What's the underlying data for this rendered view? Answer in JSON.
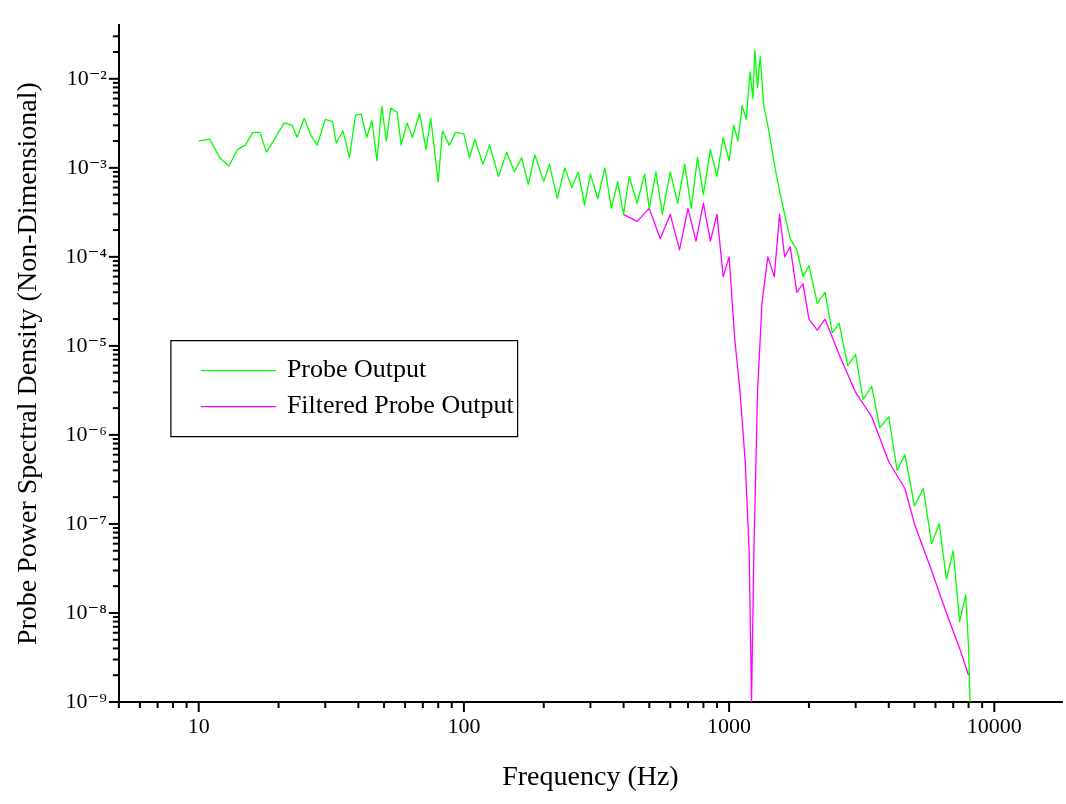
{
  "chart_data": {
    "type": "line",
    "xlabel": "Frequency (Hz)",
    "ylabel": "Probe Power Spectral Density (Non-Dimensional)",
    "log": "xy",
    "marker": "none",
    "line_style": "solid",
    "legend": "left",
    "xlim": [
      5,
      18000
    ],
    "ylim": [
      1e-09,
      0.04
    ],
    "xticks": [
      {
        "value": 5,
        "label": null
      },
      {
        "value": 6,
        "label": null
      },
      {
        "value": 7,
        "label": null
      },
      {
        "value": 8,
        "label": null
      },
      {
        "value": 9,
        "label": null
      },
      10,
      {
        "value": 20,
        "label": null
      },
      {
        "value": 30,
        "label": null
      },
      {
        "value": 40,
        "label": null
      },
      {
        "value": 50,
        "label": null
      },
      {
        "value": 60,
        "label": null
      },
      {
        "value": 70,
        "label": null
      },
      {
        "value": 80,
        "label": null
      },
      {
        "value": 90,
        "label": null
      },
      100,
      {
        "value": 200,
        "label": null
      },
      {
        "value": 300,
        "label": null
      },
      {
        "value": 400,
        "label": null
      },
      {
        "value": 500,
        "label": null
      },
      {
        "value": 600,
        "label": null
      },
      {
        "value": 700,
        "label": null
      },
      {
        "value": 800,
        "label": null
      },
      {
        "value": 900,
        "label": null
      },
      1000,
      {
        "value": 2000,
        "label": null
      },
      {
        "value": 3000,
        "label": null
      },
      {
        "value": 4000,
        "label": null
      },
      {
        "value": 5000,
        "label": null
      },
      {
        "value": 6000,
        "label": null
      },
      {
        "value": 7000,
        "label": null
      },
      {
        "value": 8000,
        "label": null
      },
      {
        "value": 9000,
        "label": null
      },
      10000
    ],
    "yticks": [
      {
        "value": 1e-09,
        "label": "10⁻⁹"
      },
      {
        "value": 2e-09,
        "label": null
      },
      {
        "value": 3e-09,
        "label": null
      },
      {
        "value": 4e-09,
        "label": null
      },
      {
        "value": 5e-09,
        "label": null
      },
      {
        "value": 6e-09,
        "label": null
      },
      {
        "value": 7e-09,
        "label": null
      },
      {
        "value": 8e-09,
        "label": null
      },
      {
        "value": 9e-09,
        "label": null
      },
      {
        "value": 1e-08,
        "label": "10⁻⁸"
      },
      {
        "value": 2e-08,
        "label": null
      },
      {
        "value": 3e-08,
        "label": null
      },
      {
        "value": 4e-08,
        "label": null
      },
      {
        "value": 5e-08,
        "label": null
      },
      {
        "value": 6e-08,
        "label": null
      },
      {
        "value": 7e-08,
        "label": null
      },
      {
        "value": 8e-08,
        "label": null
      },
      {
        "value": 9e-08,
        "label": null
      },
      {
        "value": 1e-07,
        "label": "10⁻⁷"
      },
      {
        "value": 2e-07,
        "label": null
      },
      {
        "value": 3e-07,
        "label": null
      },
      {
        "value": 4e-07,
        "label": null
      },
      {
        "value": 5e-07,
        "label": null
      },
      {
        "value": 6e-07,
        "label": null
      },
      {
        "value": 7e-07,
        "label": null
      },
      {
        "value": 8e-07,
        "label": null
      },
      {
        "value": 9e-07,
        "label": null
      },
      {
        "value": 1e-06,
        "label": "10⁻⁶"
      },
      {
        "value": 2e-06,
        "label": null
      },
      {
        "value": 3e-06,
        "label": null
      },
      {
        "value": 4e-06,
        "label": null
      },
      {
        "value": 5e-06,
        "label": null
      },
      {
        "value": 6e-06,
        "label": null
      },
      {
        "value": 7e-06,
        "label": null
      },
      {
        "value": 8e-06,
        "label": null
      },
      {
        "value": 9e-06,
        "label": null
      },
      {
        "value": 1e-05,
        "label": "10⁻⁵"
      },
      {
        "value": 2e-05,
        "label": null
      },
      {
        "value": 3e-05,
        "label": null
      },
      {
        "value": 4e-05,
        "label": null
      },
      {
        "value": 5e-05,
        "label": null
      },
      {
        "value": 6e-05,
        "label": null
      },
      {
        "value": 7e-05,
        "label": null
      },
      {
        "value": 8e-05,
        "label": null
      },
      {
        "value": 9e-05,
        "label": null
      },
      {
        "value": 0.0001,
        "label": "10⁻⁴"
      },
      {
        "value": 0.0002,
        "label": null
      },
      {
        "value": 0.0003,
        "label": null
      },
      {
        "value": 0.0004,
        "label": null
      },
      {
        "value": 0.0005,
        "label": null
      },
      {
        "value": 0.0006,
        "label": null
      },
      {
        "value": 0.0007,
        "label": null
      },
      {
        "value": 0.0008,
        "label": null
      },
      {
        "value": 0.0009,
        "label": null
      },
      {
        "value": 0.001,
        "label": "10⁻³"
      },
      {
        "value": 0.002,
        "label": null
      },
      {
        "value": 0.003,
        "label": null
      },
      {
        "value": 0.004,
        "label": null
      },
      {
        "value": 0.005,
        "label": null
      },
      {
        "value": 0.006,
        "label": null
      },
      {
        "value": 0.007,
        "label": null
      },
      {
        "value": 0.008,
        "label": null
      },
      {
        "value": 0.009,
        "label": null
      },
      {
        "value": 0.01,
        "label": "10⁻²"
      },
      {
        "value": 0.02,
        "label": null
      },
      {
        "value": 0.03,
        "label": null
      }
    ],
    "series": [
      {
        "name": "Probe Output",
        "color": "#00ff00",
        "x": [
          10,
          11,
          12,
          13,
          14,
          15,
          16,
          17,
          18,
          19.5,
          21,
          22.5,
          23.5,
          25,
          26.5,
          28,
          30,
          32,
          33,
          35,
          37,
          39,
          41,
          43,
          45,
          47,
          49,
          51,
          53,
          56,
          58,
          61,
          64,
          68,
          72,
          75,
          80,
          83,
          88,
          93,
          100,
          105,
          110,
          118,
          125,
          135,
          145,
          155,
          165,
          175,
          185,
          200,
          210,
          225,
          240,
          255,
          270,
          285,
          300,
          320,
          340,
          360,
          380,
          400,
          420,
          450,
          480,
          500,
          530,
          560,
          600,
          640,
          680,
          720,
          760,
          800,
          850,
          900,
          950,
          1000,
          1040,
          1080,
          1120,
          1160,
          1200,
          1230,
          1250,
          1280,
          1310,
          1350,
          1400,
          1450,
          1500,
          1560,
          1620,
          1700,
          1800,
          1900,
          2000,
          2150,
          2300,
          2450,
          2600,
          2800,
          3000,
          3200,
          3450,
          3700,
          4000,
          4300,
          4600,
          5000,
          5400,
          5800,
          6200,
          6600,
          7000,
          7400,
          7800,
          8000,
          8100
        ],
        "values": [
          0.002,
          0.0021,
          0.0013,
          0.00105,
          0.0016,
          0.0018,
          0.0025,
          0.0025,
          0.0015,
          0.0022,
          0.0032,
          0.003,
          0.0022,
          0.0036,
          0.0023,
          0.0018,
          0.0035,
          0.0033,
          0.0019,
          0.0026,
          0.0013,
          0.0039,
          0.004,
          0.0022,
          0.0034,
          0.0012,
          0.0049,
          0.002,
          0.0047,
          0.0042,
          0.0018,
          0.0032,
          0.0022,
          0.0041,
          0.0016,
          0.0036,
          0.0007,
          0.0026,
          0.0018,
          0.0025,
          0.0024,
          0.0013,
          0.0021,
          0.0011,
          0.0018,
          0.0008,
          0.0015,
          0.0009,
          0.0013,
          0.00065,
          0.0014,
          0.0007,
          0.0011,
          0.00045,
          0.001,
          0.0006,
          0.0009,
          0.00038,
          0.00085,
          0.00045,
          0.001,
          0.00035,
          0.0007,
          0.0003,
          0.0008,
          0.0004,
          0.00085,
          0.00035,
          0.0009,
          0.0003,
          0.0009,
          0.0004,
          0.0011,
          0.00035,
          0.0013,
          0.0005,
          0.0016,
          0.0008,
          0.0022,
          0.0012,
          0.003,
          0.002,
          0.005,
          0.0035,
          0.012,
          0.006,
          0.021,
          0.008,
          0.018,
          0.005,
          0.003,
          0.0016,
          0.0009,
          0.0005,
          0.0003,
          0.00016,
          0.00012,
          6e-05,
          8e-05,
          3e-05,
          4e-05,
          1.4e-05,
          1.8e-05,
          6e-06,
          8e-06,
          2.5e-06,
          3.5e-06,
          1.2e-06,
          1.6e-06,
          4e-07,
          6e-07,
          1.6e-07,
          2.5e-07,
          6e-08,
          1e-07,
          2.4e-08,
          5e-08,
          8e-09,
          1.6e-08,
          4e-09,
          1e-09
        ]
      },
      {
        "name": "Filtered Probe Output",
        "color": "#ff00ff",
        "x": [
          400,
          450,
          500,
          550,
          600,
          650,
          700,
          750,
          800,
          850,
          900,
          950,
          1000,
          1050,
          1100,
          1150,
          1190,
          1215,
          1240,
          1280,
          1330,
          1400,
          1480,
          1550,
          1620,
          1700,
          1800,
          1900,
          2000,
          2150,
          2300,
          2600,
          3000,
          3450,
          4000,
          4600,
          5000,
          5800,
          6600,
          7400,
          8000
        ],
        "values": [
          0.0003,
          0.00025,
          0.00035,
          0.00016,
          0.0003,
          0.00012,
          0.00035,
          0.00015,
          0.0004,
          0.00015,
          0.0003,
          6e-05,
          0.0001,
          1.2e-05,
          3e-06,
          5e-07,
          5e-08,
          1e-09,
          5e-08,
          3e-06,
          3e-05,
          0.0001,
          6e-05,
          0.0003,
          0.0001,
          0.00013,
          4e-05,
          5e-05,
          2e-05,
          1.5e-05,
          2e-05,
          8e-06,
          3e-06,
          1.6e-06,
          5e-07,
          2.5e-07,
          1e-07,
          3e-08,
          1e-08,
          4e-09,
          2e-09
        ]
      }
    ]
  }
}
